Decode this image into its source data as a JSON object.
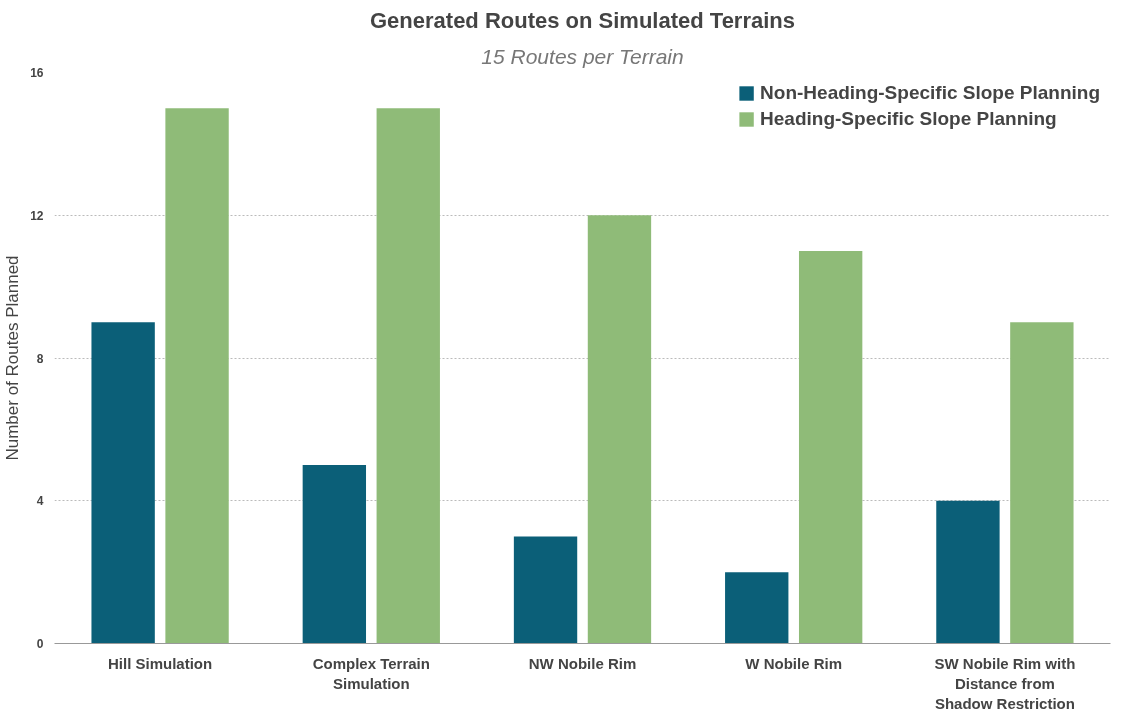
{
  "chart_data": {
    "type": "bar",
    "title": "Generated Routes on Simulated Terrains",
    "subtitle": "15 Routes per Terrain",
    "ylabel": "Number of Routes Planned",
    "categories": [
      "Hill Simulation",
      "Complex Terrain\nSimulation",
      "NW Nobile Rim",
      "W Nobile Rim",
      "SW Nobile Rim with\nDistance from\nShadow Restriction"
    ],
    "series": [
      {
        "name": "Non-Heading-Specific Slope Planning",
        "color": "#0b5f78",
        "values": [
          9,
          5,
          3,
          2,
          4
        ]
      },
      {
        "name": "Heading-Specific Slope Planning",
        "color": "#8fbb78",
        "values": [
          15,
          15,
          12,
          11,
          9
        ]
      }
    ],
    "ylim": [
      0,
      16
    ],
    "yticks": [
      0,
      4,
      8,
      12,
      16
    ],
    "grid": "y",
    "legend": "top right"
  }
}
